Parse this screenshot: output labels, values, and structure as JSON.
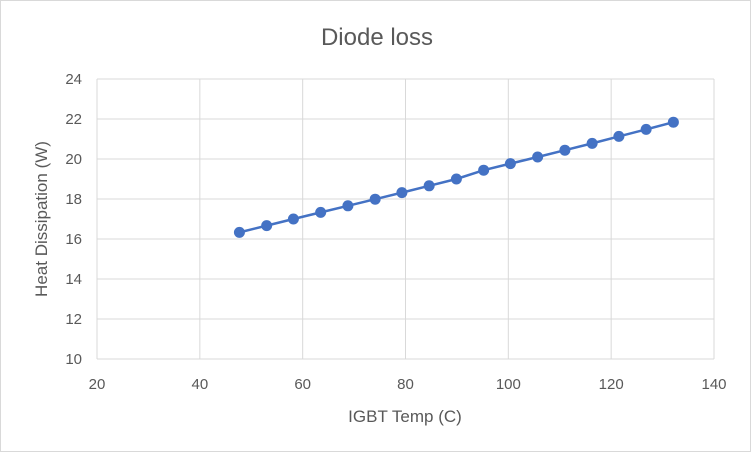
{
  "chart_data": {
    "type": "scatter",
    "title": "Diode loss",
    "xlabel": "IGBT Temp (C)",
    "ylabel": "Heat Dissipation (W)",
    "xlim": [
      20,
      140
    ],
    "ylim": [
      10,
      24
    ],
    "xticks": [
      20,
      40,
      60,
      80,
      100,
      120,
      140
    ],
    "yticks": [
      10,
      12,
      14,
      16,
      18,
      20,
      22,
      24
    ],
    "grid": true,
    "legend": "none",
    "color": "#4472C4",
    "series": [
      {
        "name": "Diode loss",
        "x": [
          47.7,
          53.0,
          58.2,
          63.5,
          68.8,
          74.1,
          79.3,
          84.6,
          89.9,
          95.2,
          100.4,
          105.7,
          111.0,
          116.3,
          121.5,
          126.8,
          132.1
        ],
        "y": [
          16.33,
          16.67,
          17.0,
          17.33,
          17.66,
          17.99,
          18.32,
          18.66,
          19.0,
          19.44,
          19.77,
          20.1,
          20.44,
          20.78,
          21.13,
          21.48,
          21.84
        ]
      }
    ]
  }
}
